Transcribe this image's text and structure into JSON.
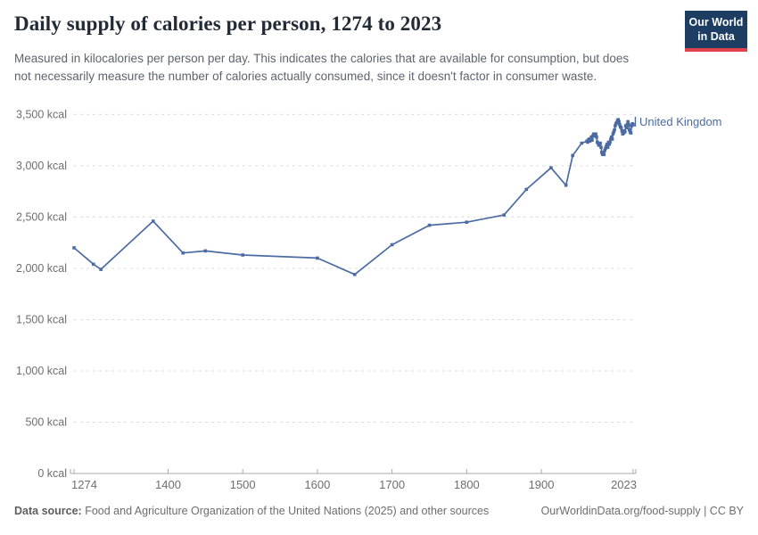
{
  "header": {
    "title": "Daily supply of calories per person, 1274 to 2023",
    "logo": {
      "line1": "Our World",
      "line2": "in Data",
      "bg_color": "#1d3d63",
      "bar_color": "#e0434e"
    }
  },
  "subtitle": "Measured in kilocalories per person per day. This indicates the calories that are available for consumption, but does not necessarily measure the number of calories actually consumed, since it doesn't factor in consumer waste.",
  "chart_data": {
    "type": "line",
    "title": "Daily supply of calories per person, 1274 to 2023",
    "xlabel": "",
    "ylabel": "",
    "unit": "kcal",
    "xlim": [
      1274,
      2023
    ],
    "ylim": [
      0,
      3500
    ],
    "x_ticks": [
      1274,
      1400,
      1500,
      1600,
      1700,
      1800,
      1900,
      2023
    ],
    "y_ticks": [
      0,
      500,
      1000,
      1500,
      2000,
      2500,
      3000,
      3500
    ],
    "y_tick_suffix": " kcal",
    "grid": "horizontal-dashed",
    "legend_position": "end-of-line-label",
    "series": [
      {
        "name": "United Kingdom",
        "color": "#4c6ba3",
        "points": [
          [
            1274,
            2200
          ],
          [
            1300,
            2040
          ],
          [
            1310,
            1990
          ],
          [
            1380,
            2460
          ],
          [
            1420,
            2150
          ],
          [
            1450,
            2170
          ],
          [
            1500,
            2130
          ],
          [
            1600,
            2100
          ],
          [
            1650,
            1940
          ],
          [
            1700,
            2230
          ],
          [
            1750,
            2420
          ],
          [
            1800,
            2450
          ],
          [
            1850,
            2520
          ],
          [
            1880,
            2770
          ],
          [
            1913,
            2980
          ],
          [
            1933,
            2810
          ],
          [
            1942,
            3100
          ],
          [
            1954,
            3220
          ],
          [
            1961,
            3240
          ],
          [
            1962,
            3230
          ],
          [
            1963,
            3250
          ],
          [
            1964,
            3260
          ],
          [
            1965,
            3240
          ],
          [
            1966,
            3260
          ],
          [
            1967,
            3280
          ],
          [
            1968,
            3250
          ],
          [
            1969,
            3290
          ],
          [
            1970,
            3310
          ],
          [
            1971,
            3290
          ],
          [
            1972,
            3300
          ],
          [
            1973,
            3310
          ],
          [
            1974,
            3280
          ],
          [
            1975,
            3230
          ],
          [
            1976,
            3220
          ],
          [
            1977,
            3200
          ],
          [
            1978,
            3210
          ],
          [
            1979,
            3220
          ],
          [
            1980,
            3180
          ],
          [
            1981,
            3130
          ],
          [
            1982,
            3110
          ],
          [
            1983,
            3130
          ],
          [
            1984,
            3110
          ],
          [
            1985,
            3150
          ],
          [
            1986,
            3170
          ],
          [
            1987,
            3190
          ],
          [
            1988,
            3210
          ],
          [
            1989,
            3180
          ],
          [
            1990,
            3230
          ],
          [
            1991,
            3210
          ],
          [
            1992,
            3230
          ],
          [
            1993,
            3260
          ],
          [
            1994,
            3280
          ],
          [
            1995,
            3260
          ],
          [
            1996,
            3310
          ],
          [
            1997,
            3330
          ],
          [
            1998,
            3350
          ],
          [
            1999,
            3390
          ],
          [
            2000,
            3410
          ],
          [
            2001,
            3420
          ],
          [
            2002,
            3440
          ],
          [
            2003,
            3450
          ],
          [
            2004,
            3430
          ],
          [
            2005,
            3400
          ],
          [
            2006,
            3380
          ],
          [
            2007,
            3370
          ],
          [
            2008,
            3340
          ],
          [
            2009,
            3310
          ],
          [
            2010,
            3320
          ],
          [
            2011,
            3340
          ],
          [
            2012,
            3330
          ],
          [
            2013,
            3390
          ],
          [
            2014,
            3370
          ],
          [
            2015,
            3400
          ],
          [
            2016,
            3430
          ],
          [
            2017,
            3400
          ],
          [
            2018,
            3350
          ],
          [
            2019,
            3330
          ],
          [
            2020,
            3320
          ],
          [
            2021,
            3390
          ],
          [
            2022,
            3410
          ],
          [
            2023,
            3400
          ]
        ]
      }
    ]
  },
  "footer": {
    "datasource_label": "Data source:",
    "datasource_text": " Food and Agriculture Organization of the United Nations (2025) and other sources",
    "credit": "OurWorldinData.org/food-supply | CC BY"
  },
  "colors": {
    "line": "#4c6ba3",
    "entity_label": "#4c6ba3",
    "grid": "#dcdcdc",
    "axis": "#a8a8a8",
    "tick_label": "#6e6e6e"
  }
}
